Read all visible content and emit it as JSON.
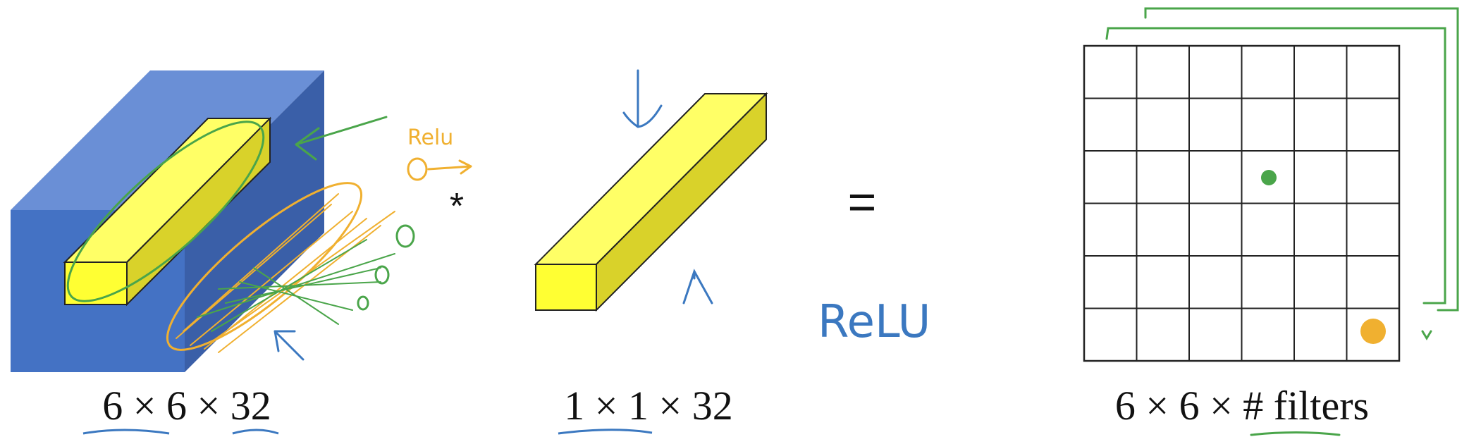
{
  "volume_label": "6 × 6 × 32",
  "filter_label": "1 × 1 × 32",
  "output_label": "6 × 6 × # filters",
  "conv_operator": "*",
  "equals_operator": "=",
  "relu_small": "Relu",
  "relu_large": "ReLU",
  "grid": {
    "rows": 6,
    "cols": 6
  },
  "colors": {
    "volume_front": "#4472c4",
    "volume_side": "#3a5fa8",
    "volume_top": "#6a8fd6",
    "slice_yellow": "#ffff33",
    "slice_side": "#d9d22a",
    "ink_green": "#4aa54a",
    "ink_orange": "#f0b030",
    "ink_blue": "#3b78c0"
  }
}
